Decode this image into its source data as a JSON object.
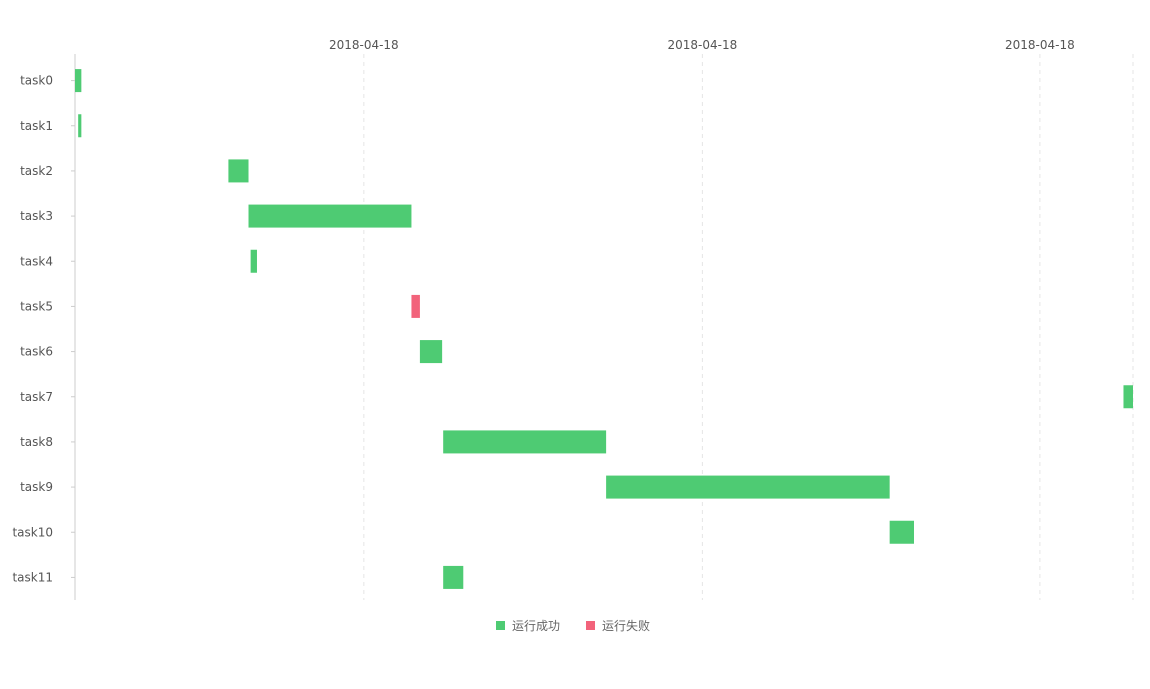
{
  "chart_data": {
    "type": "gantt",
    "title": "",
    "xlabel": "",
    "ylabel": "",
    "x_ticks": [
      "2018-04-18",
      "2018-04-18",
      "2018-04-18"
    ],
    "x_domain": [
      0,
      1000
    ],
    "x_tick_values": [
      273,
      593,
      912
    ],
    "categories": [
      "task0",
      "task1",
      "task2",
      "task3",
      "task4",
      "task5",
      "task6",
      "task7",
      "task8",
      "task9",
      "task10",
      "task11"
    ],
    "tasks": [
      {
        "name": "task0",
        "start": 0,
        "end": 6,
        "status": "success"
      },
      {
        "name": "task1",
        "start": 3,
        "end": 6,
        "status": "success"
      },
      {
        "name": "task2",
        "start": 145,
        "end": 164,
        "status": "success"
      },
      {
        "name": "task3",
        "start": 164,
        "end": 318,
        "status": "success"
      },
      {
        "name": "task4",
        "start": 166,
        "end": 172,
        "status": "success"
      },
      {
        "name": "task5",
        "start": 318,
        "end": 326,
        "status": "failure"
      },
      {
        "name": "task6",
        "start": 326,
        "end": 347,
        "status": "success"
      },
      {
        "name": "task7",
        "start": 991,
        "end": 1000,
        "status": "success"
      },
      {
        "name": "task8",
        "start": 348,
        "end": 502,
        "status": "success"
      },
      {
        "name": "task9",
        "start": 502,
        "end": 770,
        "status": "success"
      },
      {
        "name": "task10",
        "start": 770,
        "end": 793,
        "status": "success"
      },
      {
        "name": "task11",
        "start": 348,
        "end": 367,
        "status": "success"
      }
    ],
    "grid": true,
    "legend_position": "bottom-center",
    "legend": [
      {
        "key": "success",
        "label": "运行成功",
        "color": "#4ecb73"
      },
      {
        "key": "failure",
        "label": "运行失败",
        "color": "#f2637b"
      }
    ]
  }
}
